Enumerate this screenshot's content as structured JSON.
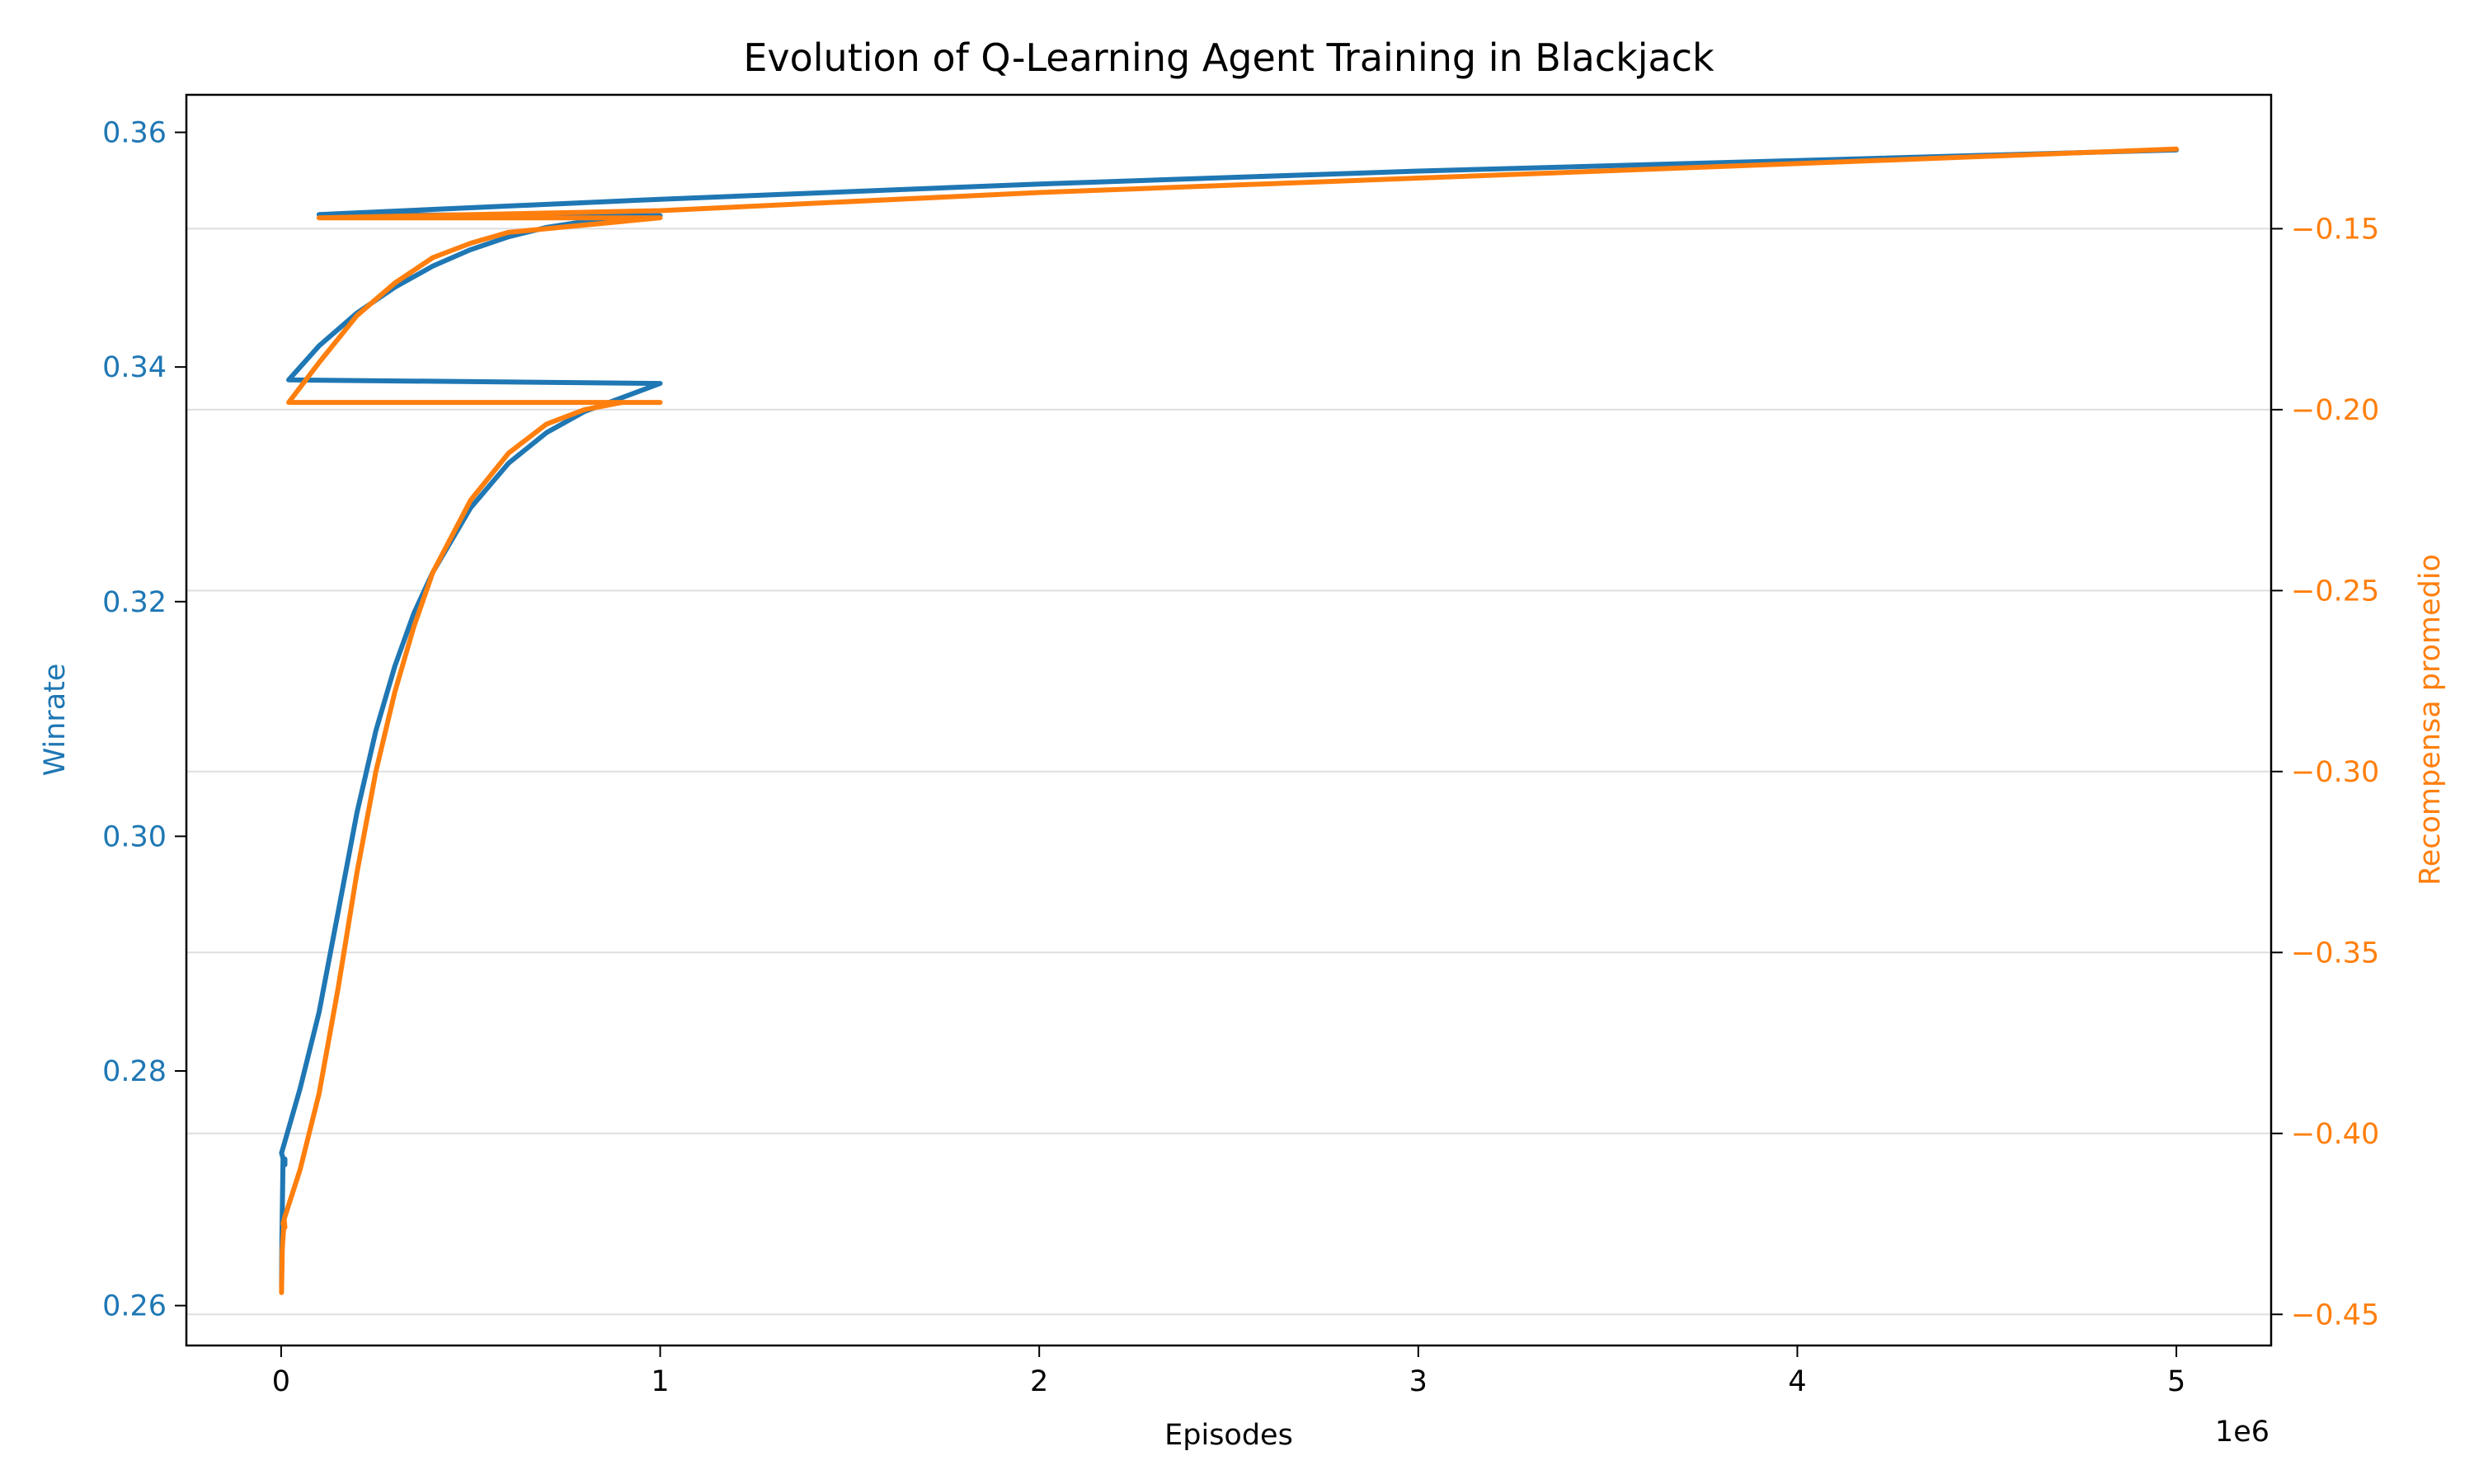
{
  "chart_data": {
    "type": "line",
    "title": "Evolution of Q-Learning Agent Training in Blackjack",
    "xlabel": "Episodes",
    "x_offset_text": "1e6",
    "xlim": [
      -250000,
      5250000
    ],
    "x_ticks": [
      0,
      1000000,
      2000000,
      3000000,
      4000000,
      5000000
    ],
    "x_tick_labels": [
      "0",
      "1",
      "2",
      "3",
      "4",
      "5"
    ],
    "y_left": {
      "label": "Winrate",
      "color": "#1f77b4",
      "lim": [
        0.2566,
        0.3632
      ],
      "ticks": [
        0.26,
        0.28,
        0.3,
        0.32,
        0.34,
        0.36
      ],
      "tick_labels": [
        "0.26",
        "0.28",
        "0.30",
        "0.32",
        "0.34",
        "0.36"
      ]
    },
    "y_right": {
      "label": "Recompensa promedio",
      "color": "#ff7f0e",
      "lim": [
        -0.4586,
        -0.113
      ],
      "ticks": [
        -0.45,
        -0.4,
        -0.35,
        -0.3,
        -0.25,
        -0.2,
        -0.15
      ],
      "tick_labels": [
        "−0.45",
        "−0.40",
        "−0.35",
        "−0.30",
        "−0.25",
        "−0.20",
        "−0.15"
      ]
    },
    "grid": "horizontal (right axis)",
    "series": [
      {
        "axis": "left",
        "color": "#1f77b4",
        "x": [
          1000,
          2000,
          5000,
          10000,
          10000,
          1000,
          10000,
          50000,
          100000,
          150000,
          200000,
          250000,
          300000,
          350000,
          400000,
          500000,
          600000,
          700000,
          800000,
          900000,
          1000000,
          20000,
          100000,
          200000,
          300000,
          400000,
          500000,
          600000,
          700000,
          800000,
          900000,
          1000000,
          100000,
          1000000,
          2000000,
          3000000,
          4000000,
          5000000
        ],
        "y": [
          0.2615,
          0.2655,
          0.2725,
          0.2725,
          0.272,
          0.273,
          0.274,
          0.2785,
          0.285,
          0.2935,
          0.302,
          0.309,
          0.3145,
          0.319,
          0.3225,
          0.328,
          0.3318,
          0.3344,
          0.3362,
          0.3374,
          0.3386,
          0.3389,
          0.3418,
          0.3446,
          0.3468,
          0.3486,
          0.35,
          0.3511,
          0.3519,
          0.3524,
          0.3527,
          0.3529,
          0.353,
          0.3543,
          0.3556,
          0.3567,
          0.3576,
          0.3585
        ]
      },
      {
        "axis": "right",
        "color": "#ff7f0e",
        "x": [
          1000,
          3000,
          8000,
          10000,
          5000,
          10000,
          50000,
          100000,
          150000,
          200000,
          250000,
          300000,
          350000,
          400000,
          500000,
          600000,
          700000,
          800000,
          900000,
          1000000,
          20000,
          100000,
          200000,
          300000,
          400000,
          500000,
          600000,
          700000,
          800000,
          900000,
          1000000,
          100000,
          1000000,
          2000000,
          3000000,
          4000000,
          5000000
        ],
        "y": [
          -0.444,
          -0.432,
          -0.424,
          -0.426,
          -0.425,
          -0.423,
          -0.41,
          -0.389,
          -0.36,
          -0.328,
          -0.3,
          -0.278,
          -0.26,
          -0.245,
          -0.225,
          -0.212,
          -0.204,
          -0.2,
          -0.198,
          -0.198,
          -0.198,
          -0.187,
          -0.174,
          -0.165,
          -0.158,
          -0.154,
          -0.151,
          -0.15,
          -0.149,
          -0.148,
          -0.147,
          -0.147,
          -0.145,
          -0.14,
          -0.136,
          -0.132,
          -0.128
        ]
      }
    ]
  }
}
